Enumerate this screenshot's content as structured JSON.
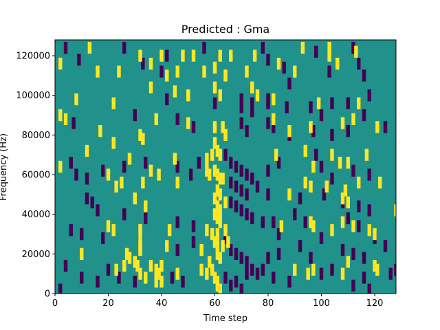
{
  "chart_data": {
    "type": "heatmap",
    "title": "Predicted : Gma",
    "xlabel": "Time step",
    "ylabel": "Frequency (Hz)",
    "xlim": [
      0,
      128
    ],
    "ylim": [
      0,
      128000
    ],
    "xticks": [
      0,
      20,
      40,
      60,
      80,
      100,
      120
    ],
    "yticks": [
      0,
      20000,
      40000,
      60000,
      80000,
      100000,
      120000
    ],
    "grid": false,
    "colormap": "viridis",
    "background_value": 0.5,
    "background_color": "#21918c",
    "colors": {
      "high": "#fde725",
      "low": "#440154",
      "mid": "#21918c"
    },
    "cell_width_steps": 1,
    "cell_height_hz": 2000,
    "high_cells": [
      [
        13,
        124000
      ],
      [
        2,
        116000
      ],
      [
        32,
        120000
      ],
      [
        36,
        116000
      ],
      [
        40,
        120000
      ],
      [
        48,
        120000
      ],
      [
        52,
        120000
      ],
      [
        62,
        120000
      ],
      [
        66,
        120000
      ],
      [
        75,
        120000
      ],
      [
        93,
        124000
      ],
      [
        103,
        124000
      ],
      [
        103,
        120000
      ],
      [
        113,
        122000
      ],
      [
        16,
        112000
      ],
      [
        24,
        112000
      ],
      [
        42,
        110000
      ],
      [
        46,
        112000
      ],
      [
        56,
        112000
      ],
      [
        60,
        114000
      ],
      [
        64,
        110000
      ],
      [
        72,
        112000
      ],
      [
        84,
        116000
      ],
      [
        90,
        112000
      ],
      [
        106,
        116000
      ],
      [
        36,
        104000
      ],
      [
        45,
        102000
      ],
      [
        8,
        98000
      ],
      [
        22,
        96000
      ],
      [
        50,
        100000
      ],
      [
        60,
        104000
      ],
      [
        62,
        100000
      ],
      [
        74,
        104000
      ],
      [
        76,
        100000
      ],
      [
        82,
        98000
      ],
      [
        99,
        96000
      ],
      [
        114,
        96000
      ],
      [
        2,
        90000
      ],
      [
        4,
        88000
      ],
      [
        38,
        88000
      ],
      [
        50,
        86000
      ],
      [
        60,
        84000
      ],
      [
        63,
        84000
      ],
      [
        64,
        80000
      ],
      [
        82,
        88000
      ],
      [
        88,
        82000
      ],
      [
        96,
        84000
      ],
      [
        108,
        86000
      ],
      [
        112,
        88000
      ],
      [
        121,
        84000
      ],
      [
        12,
        72000
      ],
      [
        17,
        82000
      ],
      [
        32,
        80000
      ],
      [
        33,
        78000
      ],
      [
        22,
        76000
      ],
      [
        60,
        76000
      ],
      [
        61,
        72000
      ],
      [
        62,
        70000
      ],
      [
        59,
        70000
      ],
      [
        28,
        68000
      ],
      [
        45,
        68000
      ],
      [
        57,
        68000
      ],
      [
        83,
        70000
      ],
      [
        94,
        72000
      ],
      [
        104,
        70000
      ],
      [
        107,
        66000
      ],
      [
        97,
        64000
      ],
      [
        110,
        66000
      ],
      [
        117,
        70000
      ],
      [
        2,
        64000
      ],
      [
        20,
        60000
      ],
      [
        36,
        62000
      ],
      [
        39,
        60000
      ],
      [
        57,
        62000
      ],
      [
        58,
        60000
      ],
      [
        60,
        62000
      ],
      [
        61,
        60000
      ],
      [
        62,
        58000
      ],
      [
        63,
        58000
      ],
      [
        23,
        54000
      ],
      [
        25,
        56000
      ],
      [
        33,
        56000
      ],
      [
        46,
        56000
      ],
      [
        61,
        52000
      ],
      [
        62,
        50000
      ],
      [
        88,
        50000
      ],
      [
        94,
        56000
      ],
      [
        96,
        54000
      ],
      [
        102,
        54000
      ],
      [
        109,
        52000
      ],
      [
        114,
        56000
      ],
      [
        122,
        56000
      ],
      [
        30,
        48000
      ],
      [
        60,
        48000
      ],
      [
        61,
        44000
      ],
      [
        62,
        42000
      ],
      [
        64,
        46000
      ],
      [
        108,
        48000
      ],
      [
        110,
        46000
      ],
      [
        128,
        42000
      ],
      [
        34,
        44000
      ],
      [
        60,
        40000
      ],
      [
        61,
        38000
      ],
      [
        62,
        36000
      ],
      [
        20,
        34000
      ],
      [
        22,
        32000
      ],
      [
        32,
        32000
      ],
      [
        43,
        32000
      ],
      [
        57,
        32000
      ],
      [
        59,
        30000
      ],
      [
        61,
        30000
      ],
      [
        64,
        32000
      ],
      [
        85,
        34000
      ],
      [
        96,
        36000
      ],
      [
        97,
        34000
      ],
      [
        104,
        32000
      ],
      [
        108,
        36000
      ],
      [
        112,
        34000
      ],
      [
        118,
        32000
      ],
      [
        120,
        30000
      ],
      [
        32,
        26000
      ],
      [
        32,
        24000
      ],
      [
        32,
        22000
      ],
      [
        42,
        24000
      ],
      [
        60,
        26000
      ],
      [
        61,
        24000
      ],
      [
        63,
        24000
      ],
      [
        65,
        26000
      ],
      [
        55,
        22000
      ],
      [
        61,
        20000
      ],
      [
        62,
        18000
      ],
      [
        58,
        16000
      ],
      [
        10,
        20000
      ],
      [
        27,
        20000
      ],
      [
        28,
        18000
      ],
      [
        30,
        16000
      ],
      [
        31,
        14000
      ],
      [
        36,
        14000
      ],
      [
        40,
        14000
      ],
      [
        23,
        12000
      ],
      [
        26,
        14000
      ],
      [
        32,
        10000
      ],
      [
        34,
        8000
      ],
      [
        38,
        12000
      ],
      [
        39,
        10000
      ],
      [
        38,
        8000
      ],
      [
        38,
        6000
      ],
      [
        40,
        6000
      ],
      [
        46,
        10000
      ],
      [
        55,
        12000
      ],
      [
        57,
        10000
      ],
      [
        59,
        12000
      ],
      [
        60,
        8000
      ],
      [
        61,
        6000
      ],
      [
        61,
        4000
      ],
      [
        62,
        2000
      ],
      [
        90,
        12000
      ],
      [
        95,
        10000
      ],
      [
        97,
        12000
      ],
      [
        108,
        10000
      ],
      [
        110,
        16000
      ],
      [
        120,
        14000
      ],
      [
        121,
        12000
      ]
    ],
    "low_cells": [
      [
        4,
        124000
      ],
      [
        26,
        124000
      ],
      [
        56,
        124000
      ],
      [
        78,
        124000
      ],
      [
        112,
        124000
      ],
      [
        98,
        122000
      ],
      [
        42,
        120000
      ],
      [
        114,
        116000
      ],
      [
        9,
        118000
      ],
      [
        33,
        116000
      ],
      [
        80,
        118000
      ],
      [
        86,
        114000
      ],
      [
        40,
        112000
      ],
      [
        88,
        106000
      ],
      [
        103,
        112000
      ],
      [
        116,
        110000
      ],
      [
        118,
        100000
      ],
      [
        110,
        96000
      ],
      [
        70,
        98000
      ],
      [
        80,
        98000
      ],
      [
        60,
        96000
      ],
      [
        42,
        98000
      ],
      [
        74,
        96000
      ],
      [
        80,
        96000
      ],
      [
        70,
        94000
      ],
      [
        74,
        92000
      ],
      [
        87,
        94000
      ],
      [
        96,
        94000
      ],
      [
        100,
        90000
      ],
      [
        104,
        96000
      ],
      [
        116,
        90000
      ],
      [
        4,
        88000
      ],
      [
        7,
        86000
      ],
      [
        30,
        90000
      ],
      [
        46,
        88000
      ],
      [
        52,
        84000
      ],
      [
        70,
        86000
      ],
      [
        72,
        82000
      ],
      [
        80,
        86000
      ],
      [
        82,
        84000
      ],
      [
        88,
        80000
      ],
      [
        97,
        82000
      ],
      [
        104,
        80000
      ],
      [
        110,
        82000
      ],
      [
        124,
        84000
      ],
      [
        6,
        66000
      ],
      [
        8,
        60000
      ],
      [
        12,
        58000
      ],
      [
        18,
        62000
      ],
      [
        26,
        64000
      ],
      [
        34,
        66000
      ],
      [
        46,
        64000
      ],
      [
        51,
        60000
      ],
      [
        54,
        66000
      ],
      [
        64,
        70000
      ],
      [
        66,
        66000
      ],
      [
        68,
        64000
      ],
      [
        70,
        62000
      ],
      [
        72,
        60000
      ],
      [
        74,
        58000
      ],
      [
        80,
        62000
      ],
      [
        84,
        66000
      ],
      [
        98,
        70000
      ],
      [
        100,
        64000
      ],
      [
        104,
        58000
      ],
      [
        112,
        62000
      ],
      [
        118,
        60000
      ],
      [
        66,
        56000
      ],
      [
        68,
        54000
      ],
      [
        70,
        52000
      ],
      [
        72,
        50000
      ],
      [
        76,
        54000
      ],
      [
        80,
        50000
      ],
      [
        92,
        48000
      ],
      [
        101,
        50000
      ],
      [
        108,
        46000
      ],
      [
        114,
        44000
      ],
      [
        118,
        42000
      ],
      [
        12,
        48000
      ],
      [
        14,
        46000
      ],
      [
        16,
        42000
      ],
      [
        26,
        40000
      ],
      [
        34,
        38000
      ],
      [
        46,
        36000
      ],
      [
        52,
        34000
      ],
      [
        66,
        46000
      ],
      [
        68,
        44000
      ],
      [
        70,
        42000
      ],
      [
        72,
        40000
      ],
      [
        74,
        38000
      ],
      [
        78,
        36000
      ],
      [
        82,
        36000
      ],
      [
        84,
        30000
      ],
      [
        90,
        40000
      ],
      [
        94,
        36000
      ],
      [
        110,
        38000
      ],
      [
        114,
        34000
      ],
      [
        120,
        28000
      ],
      [
        6,
        32000
      ],
      [
        10,
        30000
      ],
      [
        18,
        28000
      ],
      [
        32,
        26000
      ],
      [
        42,
        24000
      ],
      [
        46,
        22000
      ],
      [
        52,
        26000
      ],
      [
        64,
        28000
      ],
      [
        66,
        22000
      ],
      [
        68,
        20000
      ],
      [
        70,
        18000
      ],
      [
        72,
        16000
      ],
      [
        74,
        12000
      ],
      [
        76,
        10000
      ],
      [
        80,
        18000
      ],
      [
        84,
        20000
      ],
      [
        92,
        24000
      ],
      [
        96,
        18000
      ],
      [
        100,
        28000
      ],
      [
        108,
        22000
      ],
      [
        112,
        20000
      ],
      [
        116,
        18000
      ],
      [
        124,
        24000
      ],
      [
        128,
        12000
      ],
      [
        4,
        14000
      ],
      [
        10,
        8000
      ],
      [
        16,
        6000
      ],
      [
        20,
        12000
      ],
      [
        24,
        8000
      ],
      [
        30,
        6000
      ],
      [
        44,
        8000
      ],
      [
        48,
        6000
      ],
      [
        64,
        8000
      ],
      [
        66,
        4000
      ],
      [
        68,
        6000
      ],
      [
        70,
        2000
      ],
      [
        72,
        10000
      ],
      [
        78,
        12000
      ],
      [
        82,
        8000
      ],
      [
        88,
        6000
      ],
      [
        100,
        10000
      ],
      [
        104,
        12000
      ],
      [
        112,
        4000
      ],
      [
        118,
        2000
      ],
      [
        126,
        10000
      ],
      [
        2,
        2000
      ],
      [
        116,
        8000
      ]
    ]
  }
}
